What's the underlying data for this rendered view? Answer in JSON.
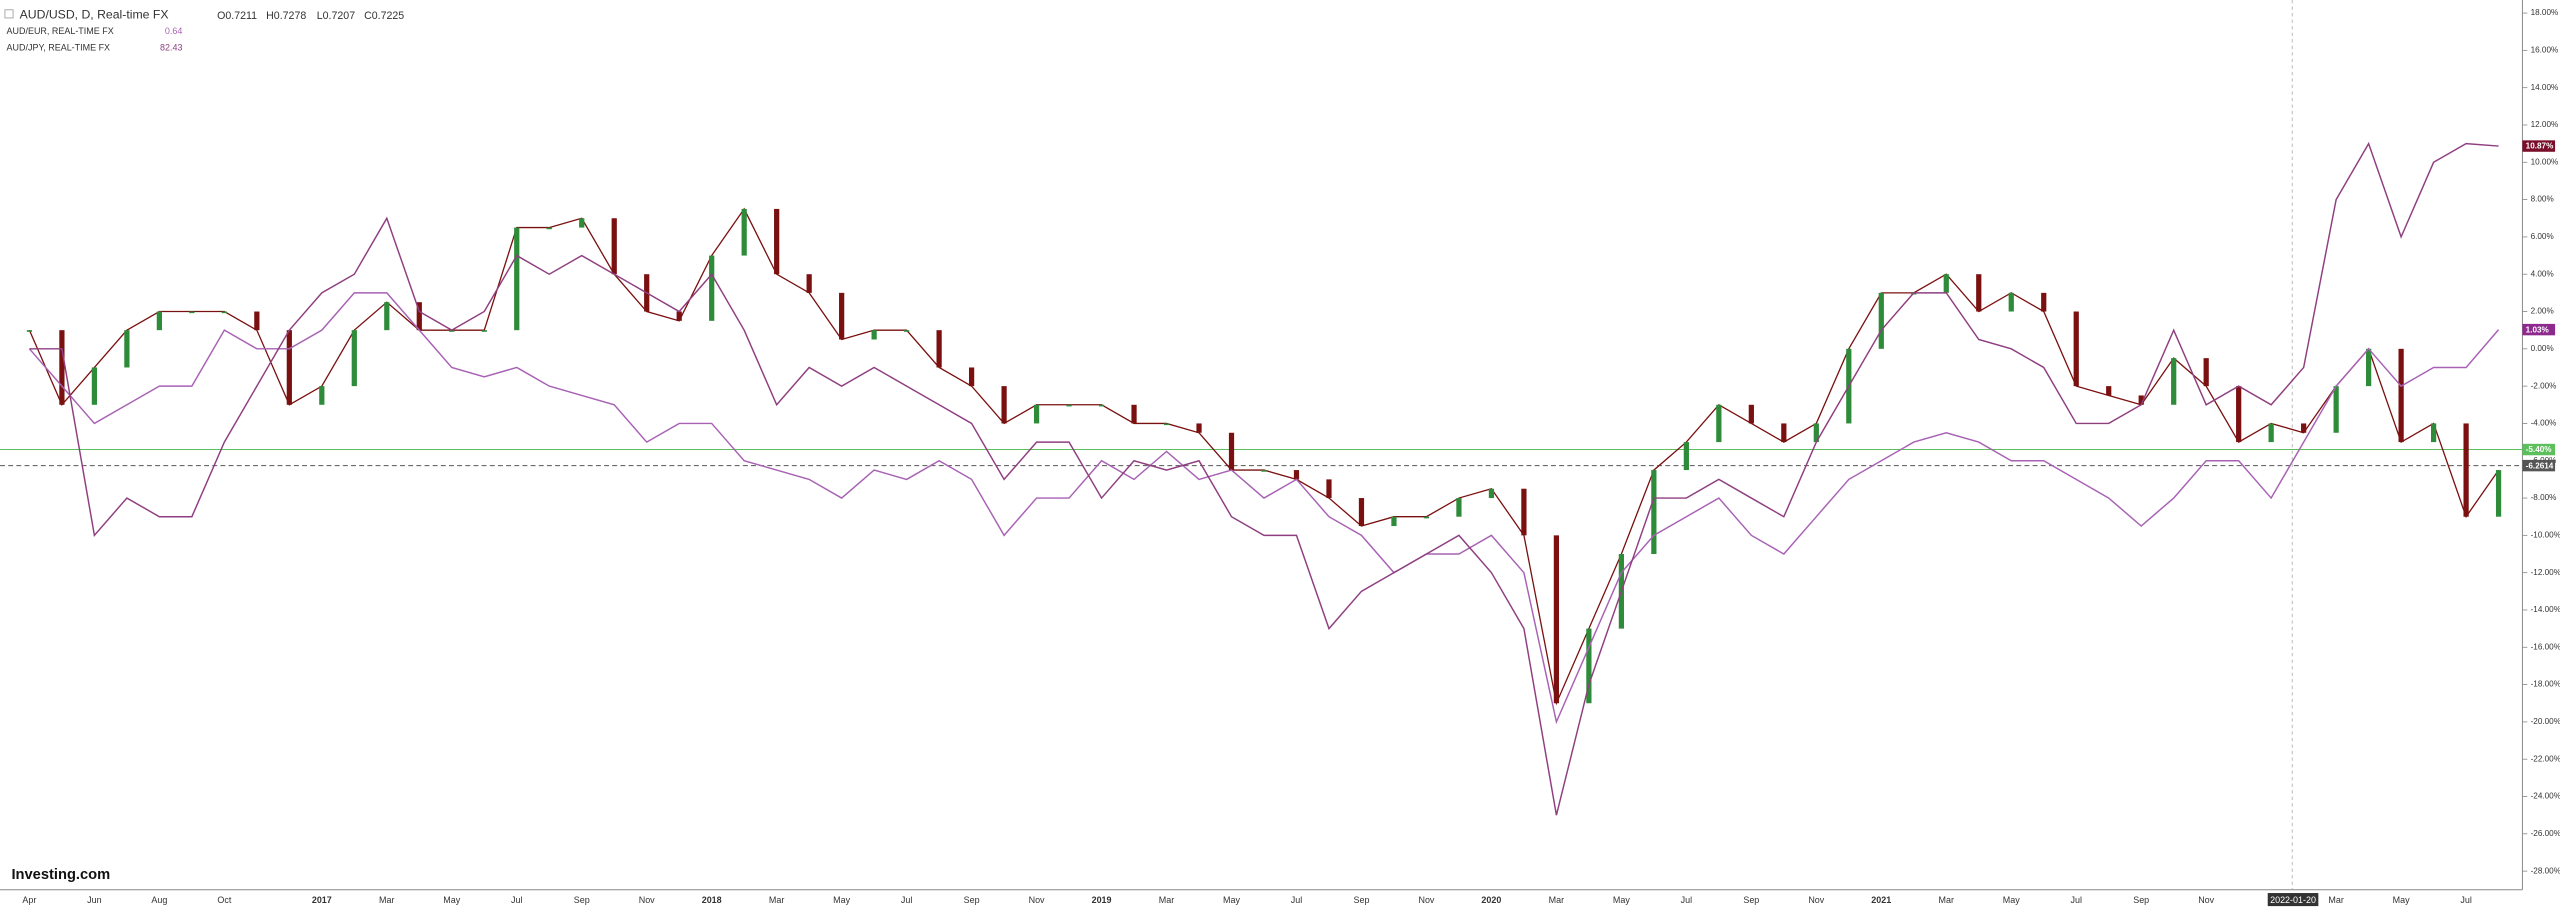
{
  "chart_data": {
    "type": "line",
    "header": {
      "title": "AUD/USD, D, Real-time FX",
      "open": "O0.7211",
      "high": "H0.7278",
      "low": "L0.7207",
      "close": "C0.7225"
    },
    "logo": "Investing.com",
    "crosshair_label": "2022-01-20",
    "categories": [
      "Apr",
      null,
      "Jun",
      null,
      "Aug",
      null,
      "Oct",
      null,
      null,
      "2017",
      null,
      "Mar",
      null,
      "May",
      null,
      "Jul",
      null,
      "Sep",
      null,
      "Nov",
      null,
      "2018",
      null,
      "Mar",
      null,
      "May",
      null,
      "Jul",
      null,
      "Sep",
      null,
      "Nov",
      null,
      "2019",
      null,
      "Mar",
      null,
      "May",
      null,
      "Jul",
      null,
      "Sep",
      null,
      "Nov",
      null,
      "2020",
      null,
      "Mar",
      null,
      "May",
      null,
      "Jul",
      null,
      "Sep",
      null,
      "Nov",
      null,
      "2021",
      null,
      "Mar",
      null,
      "May",
      null,
      "Jul",
      null,
      "Sep",
      null,
      "Nov",
      null,
      null,
      null,
      "Mar",
      null,
      "May",
      null,
      "Jul",
      null
    ],
    "series": [
      {
        "name": "AUD/USD, D, Real-time FX",
        "color": "#7a1010",
        "up_color": "#2e8b3a",
        "style": "candles",
        "values": [
          1,
          -3,
          -1,
          1,
          2,
          2,
          2,
          1,
          -3,
          -2,
          1,
          2.5,
          1,
          1,
          1,
          6.5,
          6.5,
          7,
          4,
          2,
          1.5,
          5,
          7.5,
          4,
          3,
          0.5,
          1,
          1,
          -1,
          -2,
          -4,
          -3,
          -3,
          -3,
          -4,
          -4,
          -4.5,
          -6.5,
          -6.5,
          -7,
          -8,
          -9.5,
          -9,
          -9,
          -8,
          -7.5,
          -10,
          -19,
          -15,
          -11,
          -6.5,
          -5,
          -3,
          -4,
          -5,
          -4,
          0,
          3,
          3,
          4,
          2,
          3,
          2,
          -2,
          -2.5,
          -3,
          -0.5,
          -2,
          -5,
          -4,
          -4.5,
          -2,
          0,
          -5,
          -4,
          -9,
          -6.5
        ]
      },
      {
        "name": "AUD/EUR, REAL-TIME FX",
        "color": "#a862b4",
        "legend_value": "0.64",
        "values": [
          0,
          -2,
          -4,
          -3,
          -2,
          -2,
          1,
          0,
          0,
          1,
          3,
          3,
          1,
          -1,
          -1.5,
          -1,
          -2,
          -2.5,
          -3,
          -5,
          -4,
          -4,
          -6,
          -6.5,
          -7,
          -8,
          -6.5,
          -7,
          -6,
          -7,
          -10,
          -8,
          -8,
          -6,
          -7,
          -5.5,
          -7,
          -6.5,
          -8,
          -7,
          -9,
          -10,
          -12,
          -11,
          -11,
          -10,
          -12,
          -20,
          -16,
          -12,
          -10,
          -9,
          -8,
          -10,
          -11,
          -9,
          -7,
          -6,
          -5,
          -4.5,
          -5,
          -6,
          -6,
          -7,
          -8,
          -9.5,
          -8,
          -6,
          -6,
          -8,
          -5,
          -2,
          0,
          -2,
          -1,
          -1,
          1.03
        ]
      },
      {
        "name": "AUD/JPY, REAL-TIME FX",
        "color": "#8f3f80",
        "legend_value": "82.43",
        "values": [
          0,
          0,
          -10,
          -8,
          -9,
          -9,
          -5,
          -2,
          1,
          3,
          4,
          7,
          2,
          1,
          2,
          5,
          4,
          5,
          4,
          3,
          2,
          4,
          1,
          -3,
          -1,
          -2,
          -1,
          -2,
          -3,
          -4,
          -7,
          -5,
          -5,
          -8,
          -6,
          -6.5,
          -6,
          -9,
          -10,
          -10,
          -15,
          -13,
          -12,
          -11,
          -10,
          -12,
          -15,
          -25,
          -18,
          -13,
          -8,
          -8,
          -7,
          -8,
          -9,
          -5,
          -2,
          1,
          3,
          3,
          0.5,
          0,
          -1,
          -4,
          -4,
          -3,
          1,
          -3,
          -2,
          -3,
          -1,
          8,
          11,
          6,
          10,
          11,
          10.87
        ]
      }
    ],
    "ylim": [
      -29,
      18.7
    ],
    "yticks": [
      {
        "value": 18,
        "label": "18.00%"
      },
      {
        "value": 16,
        "label": "16.00%"
      },
      {
        "value": 14,
        "label": "14.00%"
      },
      {
        "value": 12,
        "label": "12.00%"
      },
      {
        "value": 10,
        "label": "10.00%"
      },
      {
        "value": 8,
        "label": "8.00%"
      },
      {
        "value": 6,
        "label": "6.00%"
      },
      {
        "value": 4,
        "label": "4.00%"
      },
      {
        "value": 2,
        "label": "2.00%"
      },
      {
        "value": 0,
        "label": "0.00%"
      },
      {
        "value": -2,
        "label": "-2.00%"
      },
      {
        "value": -4,
        "label": "-4.00%"
      },
      {
        "value": -6,
        "label": "-6.00%"
      },
      {
        "value": -8,
        "label": "-8.00%"
      },
      {
        "value": -10,
        "label": "-10.00%"
      },
      {
        "value": -12,
        "label": "-12.00%"
      },
      {
        "value": -14,
        "label": "-14.00%"
      },
      {
        "value": -16,
        "label": "-16.00%"
      },
      {
        "value": -18,
        "label": "-18.00%"
      },
      {
        "value": -20,
        "label": "-20.00%"
      },
      {
        "value": -22,
        "label": "-22.00%"
      },
      {
        "value": -24,
        "label": "-24.00%"
      },
      {
        "value": -26,
        "label": "-26.00%"
      },
      {
        "value": -28,
        "label": "-28.00%"
      }
    ],
    "annotations": [
      {
        "value": 10.87,
        "label": "10.87%",
        "color": "#7a0d2a"
      },
      {
        "value": 1.03,
        "label": "1.03%",
        "color": "#8e2a8e"
      },
      {
        "value": -5.4,
        "label": "-5.40%",
        "color": "#5cbf5c",
        "line": "solid"
      },
      {
        "value": -6.2614,
        "label": "-6.2614",
        "color": "#555555",
        "line": "dashed"
      }
    ],
    "grid": false
  }
}
